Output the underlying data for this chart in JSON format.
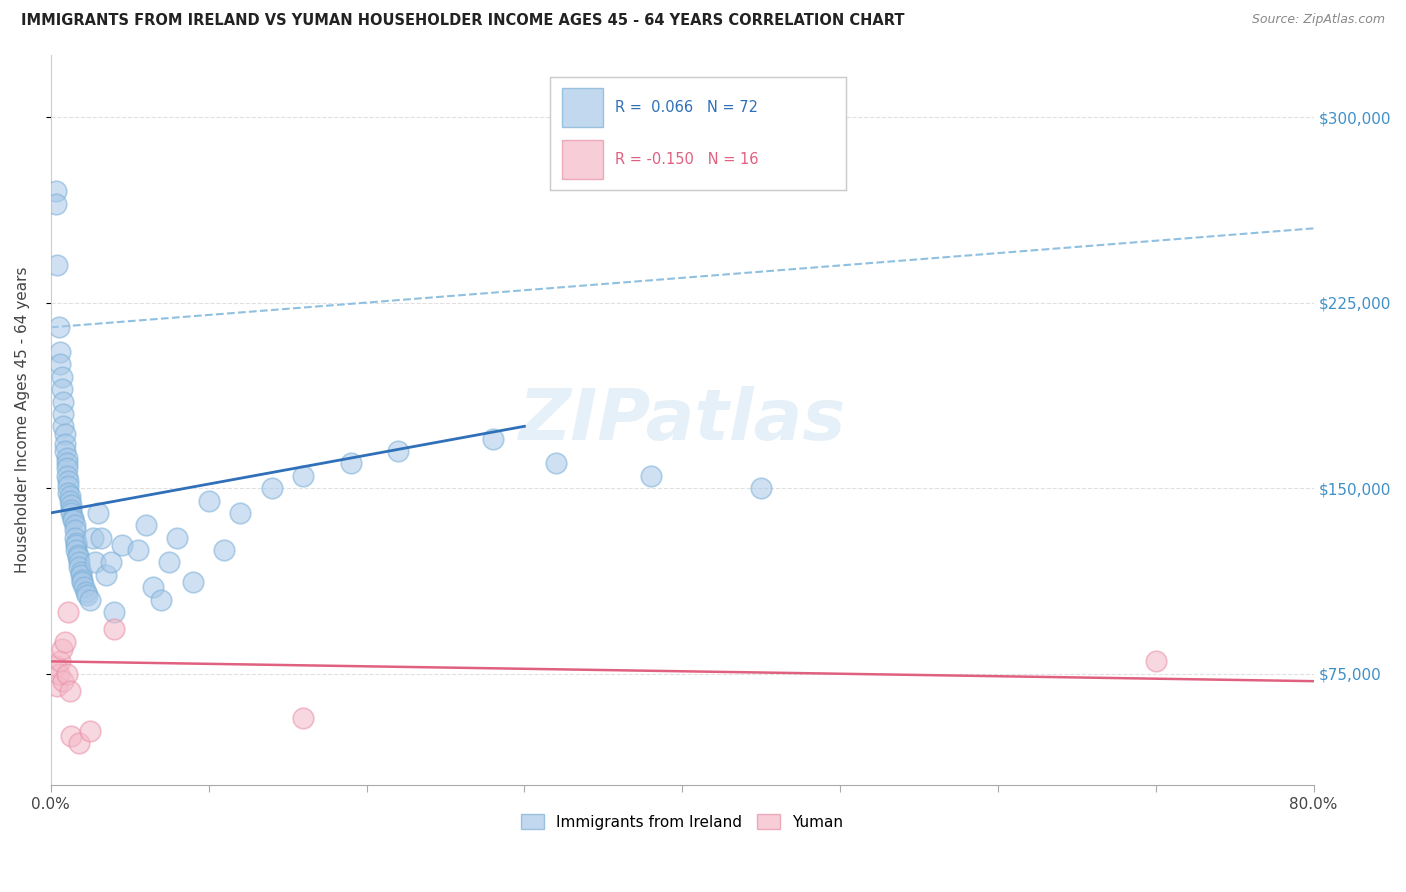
{
  "title": "IMMIGRANTS FROM IRELAND VS YUMAN HOUSEHOLDER INCOME AGES 45 - 64 YEARS CORRELATION CHART",
  "source": "Source: ZipAtlas.com",
  "ylabel": "Householder Income Ages 45 - 64 years",
  "xlim": [
    0.0,
    0.8
  ],
  "ylim": [
    30000,
    325000
  ],
  "yticks": [
    75000,
    150000,
    225000,
    300000
  ],
  "ytick_labels": [
    "$75,000",
    "$150,000",
    "$225,000",
    "$300,000"
  ],
  "xticks": [
    0.0,
    0.1,
    0.2,
    0.3,
    0.4,
    0.5,
    0.6,
    0.7,
    0.8
  ],
  "xtick_labels": [
    "0.0%",
    "",
    "",
    "",
    "",
    "",
    "",
    "",
    "80.0%"
  ],
  "color_blue_fill": "#a8c8e8",
  "color_blue_edge": "#7ab0d8",
  "color_pink_fill": "#f4b8c8",
  "color_pink_edge": "#e890a8",
  "color_blue_line": "#3070b8",
  "color_pink_line": "#e06080",
  "color_dashed_line": "#90c0e0",
  "color_ytick_labels": "#4090c8",
  "color_grid": "#e0e0e0",
  "watermark_color": "#c8dff0",
  "blue_line_x0": 0.0,
  "blue_line_y0": 140000,
  "blue_line_x1": 0.3,
  "blue_line_y1": 175000,
  "pink_line_x0": 0.0,
  "pink_line_y0": 80000,
  "pink_line_x1": 0.8,
  "pink_line_y1": 72000,
  "dash_line_x0": 0.0,
  "dash_line_y0": 215000,
  "dash_line_x1": 0.8,
  "dash_line_y1": 255000,
  "blue_x": [
    0.003,
    0.003,
    0.004,
    0.005,
    0.006,
    0.006,
    0.007,
    0.007,
    0.008,
    0.008,
    0.008,
    0.009,
    0.009,
    0.009,
    0.01,
    0.01,
    0.01,
    0.01,
    0.011,
    0.011,
    0.011,
    0.012,
    0.012,
    0.013,
    0.013,
    0.013,
    0.014,
    0.014,
    0.015,
    0.015,
    0.015,
    0.016,
    0.016,
    0.016,
    0.017,
    0.017,
    0.018,
    0.018,
    0.019,
    0.019,
    0.02,
    0.02,
    0.021,
    0.022,
    0.023,
    0.025,
    0.027,
    0.028,
    0.03,
    0.032,
    0.035,
    0.038,
    0.04,
    0.045,
    0.055,
    0.06,
    0.065,
    0.07,
    0.075,
    0.08,
    0.09,
    0.1,
    0.11,
    0.12,
    0.14,
    0.16,
    0.19,
    0.22,
    0.28,
    0.32,
    0.38,
    0.45
  ],
  "blue_y": [
    270000,
    265000,
    240000,
    215000,
    205000,
    200000,
    195000,
    190000,
    185000,
    180000,
    175000,
    172000,
    168000,
    165000,
    162000,
    160000,
    158000,
    155000,
    153000,
    151000,
    148000,
    147000,
    145000,
    143000,
    141000,
    140000,
    138000,
    137000,
    135000,
    133000,
    130000,
    128000,
    127000,
    125000,
    123000,
    122000,
    120000,
    118000,
    116000,
    115000,
    113000,
    112000,
    110000,
    108000,
    107000,
    105000,
    130000,
    120000,
    140000,
    130000,
    115000,
    120000,
    100000,
    127000,
    125000,
    135000,
    110000,
    105000,
    120000,
    130000,
    112000,
    145000,
    125000,
    140000,
    150000,
    155000,
    160000,
    165000,
    170000,
    160000,
    155000,
    150000
  ],
  "pink_x": [
    0.003,
    0.004,
    0.005,
    0.006,
    0.007,
    0.008,
    0.009,
    0.01,
    0.011,
    0.012,
    0.013,
    0.018,
    0.025,
    0.04,
    0.16,
    0.7
  ],
  "pink_y": [
    78000,
    70000,
    75000,
    80000,
    85000,
    72000,
    88000,
    75000,
    100000,
    68000,
    50000,
    47000,
    52000,
    93000,
    57000,
    80000
  ]
}
